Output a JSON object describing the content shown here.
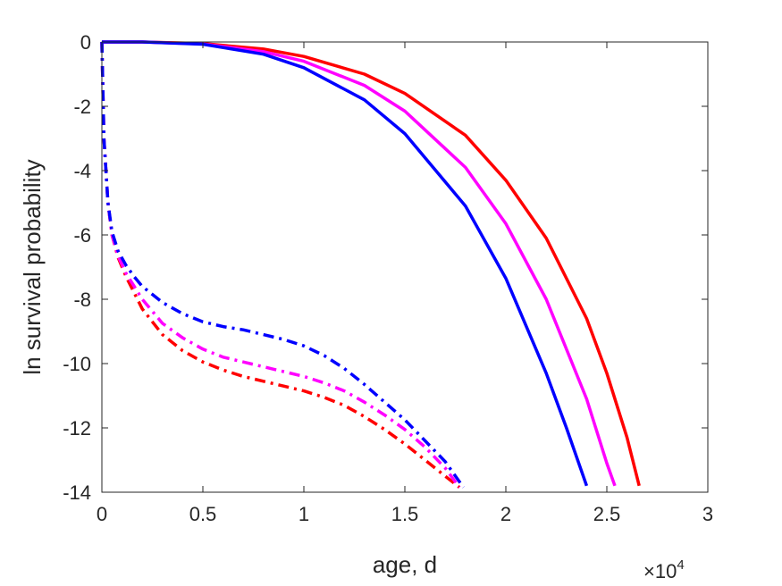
{
  "chart_data": {
    "type": "line",
    "xlabel": "age, d",
    "ylabel": "ln survival probability",
    "xlim": [
      0,
      30000
    ],
    "ylim": [
      -14,
      0
    ],
    "x_tick_values": [
      0,
      5000,
      10000,
      15000,
      20000,
      25000,
      30000
    ],
    "x_tick_labels": [
      "0",
      "0.5",
      "1",
      "1.5",
      "2",
      "2.5",
      "3"
    ],
    "x_exponent_label": {
      "base": "×10",
      "exponent": "4"
    },
    "y_tick_values": [
      0,
      -2,
      -4,
      -6,
      -8,
      -10,
      -12,
      -14
    ],
    "y_tick_labels": [
      "0",
      "-2",
      "-4",
      "-6",
      "-8",
      "-10",
      "-12",
      "-14"
    ],
    "grid": false,
    "legend": "none",
    "series": [
      {
        "color": "#ff0000",
        "style": "solid",
        "x": [
          0,
          2000,
          5000,
          8000,
          10000,
          13000,
          15000,
          18000,
          20000,
          22000,
          24000,
          25000,
          26000,
          26600
        ],
        "y": [
          0,
          0,
          -0.05,
          -0.22,
          -0.45,
          -1.0,
          -1.6,
          -2.9,
          -4.3,
          -6.1,
          -8.6,
          -10.3,
          -12.3,
          -13.8
        ]
      },
      {
        "color": "#ff00ff",
        "style": "solid",
        "x": [
          0,
          2000,
          5000,
          8000,
          10000,
          13000,
          15000,
          18000,
          20000,
          22000,
          24000,
          25000,
          25400
        ],
        "y": [
          0,
          0,
          -0.06,
          -0.3,
          -0.6,
          -1.35,
          -2.15,
          -3.9,
          -5.65,
          -8.0,
          -11.1,
          -13.1,
          -13.8
        ]
      },
      {
        "color": "#0000ff",
        "style": "solid",
        "x": [
          0,
          2000,
          5000,
          8000,
          10000,
          13000,
          15000,
          18000,
          20000,
          22000,
          23000,
          24000
        ],
        "y": [
          0,
          0,
          -0.07,
          -0.38,
          -0.8,
          -1.8,
          -2.85,
          -5.1,
          -7.35,
          -10.3,
          -12.0,
          -13.8
        ]
      },
      {
        "color": "#ff0000",
        "style": "dashdot",
        "x": [
          0,
          100,
          300,
          500,
          800,
          1200,
          1600,
          2000,
          3000,
          4000,
          5000,
          6000,
          7000,
          8000,
          9000,
          10000,
          11000,
          12000,
          13000,
          14000,
          15000,
          16000,
          17000,
          17700
        ],
        "y": [
          0,
          -3.0,
          -5.0,
          -6.0,
          -6.7,
          -7.3,
          -7.8,
          -8.3,
          -9.1,
          -9.6,
          -9.95,
          -10.2,
          -10.4,
          -10.55,
          -10.7,
          -10.85,
          -11.05,
          -11.3,
          -11.65,
          -12.05,
          -12.5,
          -13.0,
          -13.5,
          -13.85
        ]
      },
      {
        "color": "#ff00ff",
        "style": "dashdot",
        "x": [
          0,
          100,
          300,
          500,
          800,
          1200,
          1600,
          2000,
          3000,
          4000,
          5000,
          6000,
          7000,
          8000,
          9000,
          10000,
          11000,
          12000,
          13000,
          14000,
          15000,
          16000,
          17000,
          17700
        ],
        "y": [
          0,
          -3.0,
          -5.0,
          -6.0,
          -6.65,
          -7.2,
          -7.6,
          -8.0,
          -8.75,
          -9.2,
          -9.55,
          -9.8,
          -9.95,
          -10.1,
          -10.25,
          -10.4,
          -10.6,
          -10.85,
          -11.2,
          -11.6,
          -12.05,
          -12.6,
          -13.25,
          -13.85
        ]
      },
      {
        "color": "#0000ff",
        "style": "dashdot",
        "x": [
          0,
          100,
          300,
          500,
          800,
          1200,
          1600,
          2000,
          3000,
          4000,
          5000,
          6000,
          7000,
          8000,
          9000,
          10000,
          11000,
          12000,
          13000,
          14000,
          15000,
          16000,
          17000,
          17900
        ],
        "y": [
          0,
          -3.0,
          -5.0,
          -5.9,
          -6.5,
          -6.95,
          -7.3,
          -7.6,
          -8.1,
          -8.45,
          -8.7,
          -8.85,
          -8.95,
          -9.1,
          -9.25,
          -9.45,
          -9.75,
          -10.15,
          -10.65,
          -11.2,
          -11.75,
          -12.4,
          -13.05,
          -13.85
        ]
      }
    ]
  }
}
